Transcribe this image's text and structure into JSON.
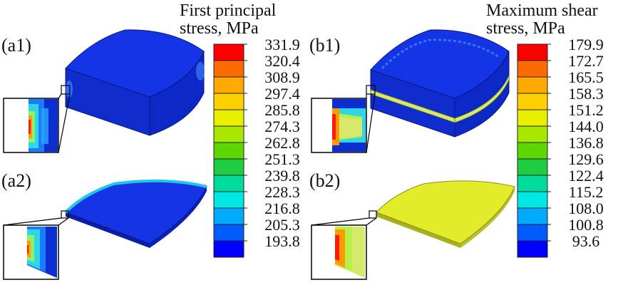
{
  "panel_a": {
    "labels": {
      "a1": "(a1)",
      "a2": "(a2)"
    },
    "legend": {
      "title_line1": "First principal",
      "title_line2": "stress, MPa",
      "ticks": [
        "331.9",
        "320.4",
        "308.9",
        "297.4",
        "285.8",
        "274.3",
        "262.8",
        "251.3",
        "239.8",
        "228.3",
        "216.8",
        "205.3",
        "193.8"
      ]
    }
  },
  "panel_b": {
    "labels": {
      "b1": "(b1)",
      "b2": "(b2)"
    },
    "legend": {
      "title_line1": "Maximum shear",
      "title_line2": "stress, MPa",
      "ticks": [
        "179.9",
        "172.7",
        "165.5",
        "158.3",
        "151.2",
        "144.0",
        "136.8",
        "129.6",
        "122.4",
        "115.2",
        "108.0",
        "100.8",
        "93.6"
      ]
    }
  },
  "colorbar_colors": [
    "#ff0000",
    "#ff6a00",
    "#ffaa00",
    "#ffd000",
    "#e8f000",
    "#a8e800",
    "#5ad800",
    "#20cc40",
    "#00dc9c",
    "#00e8e4",
    "#00aaff",
    "#005cff",
    "#0000ff"
  ]
}
